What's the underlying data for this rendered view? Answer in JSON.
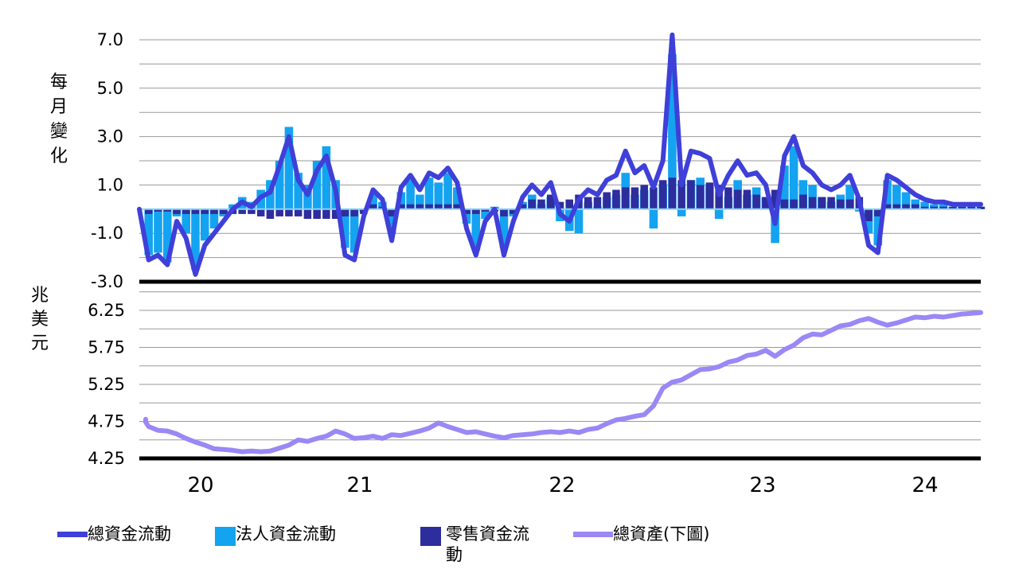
{
  "chart_data": [
    {
      "type": "line",
      "ylabel": "每月變化",
      "ylim": [
        -3.0,
        7.0
      ],
      "yticks": [
        "7.0",
        "5.0",
        "3.0",
        "1.0",
        "-1.0",
        "-3.0"
      ],
      "ytick_values": [
        7,
        5,
        3,
        1,
        -1,
        -3
      ],
      "x_range": [
        19.75,
        24.25
      ],
      "xticks": [
        "20",
        "21",
        "22",
        "23",
        "24"
      ],
      "xtick_values": [
        20,
        21,
        22,
        23,
        24
      ],
      "grid": true,
      "series": [
        {
          "name": "總資金流動",
          "color": "#3f3fd9",
          "kind": "line",
          "x": [
            19.75,
            19.8,
            19.85,
            19.9,
            19.95,
            20.0,
            20.05,
            20.1,
            20.15,
            20.2,
            20.25,
            20.3,
            20.35,
            20.4,
            20.45,
            20.5,
            20.55,
            20.6,
            20.65,
            20.7,
            20.75,
            20.8,
            20.85,
            20.9,
            20.95,
            21.0,
            21.05,
            21.1,
            21.15,
            21.2,
            21.25,
            21.3,
            21.35,
            21.4,
            21.45,
            21.5,
            21.55,
            21.6,
            21.65,
            21.7,
            21.75,
            21.8,
            21.85,
            21.9,
            21.95,
            22.0,
            22.05,
            22.1,
            22.15,
            22.2,
            22.25,
            22.3,
            22.35,
            22.4,
            22.45,
            22.5,
            22.55,
            22.6,
            22.65,
            22.7,
            22.75,
            22.8,
            22.85,
            22.9,
            22.95,
            23.0,
            23.05,
            23.1,
            23.15,
            23.2,
            23.25,
            23.3,
            23.35,
            23.4,
            23.45,
            23.5,
            23.55,
            23.6,
            23.65,
            23.7,
            23.75,
            23.8,
            23.85,
            23.9,
            23.95,
            24.0,
            24.05,
            24.1,
            24.15,
            24.2,
            24.25
          ],
          "values": [
            0,
            -2.1,
            -1.9,
            -2.3,
            -0.5,
            -1.2,
            -2.7,
            -1.5,
            -1.0,
            -0.5,
            0,
            0.3,
            0.1,
            0.5,
            0.7,
            1.8,
            3.0,
            1.2,
            0.6,
            1.6,
            2.2,
            0.8,
            -1.9,
            -2.1,
            -0.3,
            0.8,
            0.4,
            -1.3,
            0.9,
            1.4,
            0.8,
            1.5,
            1.3,
            1.7,
            1.1,
            -0.8,
            -1.9,
            -0.5,
            0,
            -1.9,
            -0.5,
            0.5,
            1.0,
            0.6,
            1.1,
            -0.2,
            -0.5,
            0.4,
            0.8,
            0.6,
            1.2,
            1.4,
            2.4,
            1.5,
            1.8,
            0.9,
            2.0,
            7.2,
            1.0,
            2.4,
            2.3,
            2.1,
            0.6,
            1.4,
            2.0,
            1.4,
            1.5,
            1.0,
            -0.6,
            2.2,
            3.0,
            1.8,
            1.5,
            1.0,
            0.8,
            1.0,
            1.4,
            0.4,
            -1.5,
            -1.8,
            1.4,
            1.2,
            0.9,
            0.6,
            0.4,
            0.3,
            0.3,
            0.2,
            0.2,
            0.2,
            0.2
          ]
        },
        {
          "name": "法人資金流動",
          "color": "#14a3f0",
          "kind": "bar",
          "x": [
            19.75,
            19.8,
            19.85,
            19.9,
            19.95,
            20.0,
            20.05,
            20.1,
            20.15,
            20.2,
            20.25,
            20.3,
            20.35,
            20.4,
            20.45,
            20.5,
            20.55,
            20.6,
            20.65,
            20.7,
            20.75,
            20.8,
            20.85,
            20.9,
            20.95,
            21.0,
            21.05,
            21.1,
            21.15,
            21.2,
            21.25,
            21.3,
            21.35,
            21.4,
            21.45,
            21.5,
            21.55,
            21.6,
            21.65,
            21.7,
            21.75,
            21.8,
            21.85,
            21.9,
            21.95,
            22.0,
            22.05,
            22.1,
            22.15,
            22.2,
            22.25,
            22.3,
            22.35,
            22.4,
            22.45,
            22.5,
            22.55,
            22.6,
            22.65,
            22.7,
            22.75,
            22.8,
            22.85,
            22.9,
            22.95,
            23.0,
            23.05,
            23.1,
            23.15,
            23.2,
            23.25,
            23.3,
            23.35,
            23.4,
            23.45,
            23.5,
            23.55,
            23.6,
            23.65,
            23.7,
            23.75,
            23.8,
            23.85,
            23.9,
            23.95,
            24.0,
            24.05,
            24.1,
            24.15,
            24.2,
            24.25
          ],
          "values": [
            0,
            -1.9,
            -1.8,
            -2.2,
            -0.3,
            -1.0,
            -2.5,
            -1.3,
            -0.8,
            -0.3,
            0.2,
            0.5,
            0.3,
            0.8,
            1.2,
            2.0,
            3.4,
            1.5,
            1.0,
            2.0,
            2.6,
            1.2,
            -1.6,
            -1.8,
            -0.1,
            0.6,
            0.3,
            -1.0,
            0.7,
            1.2,
            0.6,
            1.3,
            1.1,
            1.5,
            0.9,
            -0.6,
            -1.7,
            -0.4,
            0.1,
            -1.6,
            -0.3,
            0.3,
            0.6,
            0.2,
            0.5,
            -0.5,
            -0.9,
            -1.0,
            0.3,
            0.1,
            0.5,
            0.6,
            1.5,
            0.6,
            0.8,
            -0.8,
            1.0,
            6.4,
            -0.3,
            1.2,
            1.3,
            1.0,
            -0.4,
            0.5,
            1.2,
            0.6,
            0.9,
            0.5,
            -1.4,
            1.8,
            2.6,
            1.2,
            1.0,
            0.5,
            0.3,
            0.6,
            1.0,
            -0.1,
            -1.0,
            -1.5,
            1.2,
            1.0,
            0.7,
            0.4,
            0.3,
            0.2,
            0.2,
            0.1,
            0.1,
            0.1,
            0.1
          ]
        },
        {
          "name": "零售資金流動",
          "color": "#2e2d9e",
          "kind": "bar",
          "x": [
            19.75,
            19.8,
            19.85,
            19.9,
            19.95,
            20.0,
            20.05,
            20.1,
            20.15,
            20.2,
            20.25,
            20.3,
            20.35,
            20.4,
            20.45,
            20.5,
            20.55,
            20.6,
            20.65,
            20.7,
            20.75,
            20.8,
            20.85,
            20.9,
            20.95,
            21.0,
            21.05,
            21.1,
            21.15,
            21.2,
            21.25,
            21.3,
            21.35,
            21.4,
            21.45,
            21.5,
            21.55,
            21.6,
            21.65,
            21.7,
            21.75,
            21.8,
            21.85,
            21.9,
            21.95,
            22.0,
            22.05,
            22.1,
            22.15,
            22.2,
            22.25,
            22.3,
            22.35,
            22.4,
            22.45,
            22.5,
            22.55,
            22.6,
            22.65,
            22.7,
            22.75,
            22.8,
            22.85,
            22.9,
            22.95,
            23.0,
            23.05,
            23.1,
            23.15,
            23.2,
            23.25,
            23.3,
            23.35,
            23.4,
            23.45,
            23.5,
            23.55,
            23.6,
            23.65,
            23.7,
            23.75,
            23.8,
            23.85,
            23.9,
            23.95,
            24.0,
            24.05,
            24.1,
            24.15,
            24.2,
            24.25
          ],
          "values": [
            0,
            -0.2,
            -0.1,
            -0.1,
            -0.2,
            -0.2,
            -0.2,
            -0.2,
            -0.2,
            -0.2,
            -0.2,
            -0.2,
            -0.2,
            -0.3,
            -0.4,
            -0.3,
            -0.3,
            -0.3,
            -0.4,
            -0.4,
            -0.4,
            -0.4,
            -0.3,
            -0.3,
            -0.2,
            0.2,
            0.1,
            -0.3,
            0.2,
            0.2,
            0.2,
            0.2,
            0.2,
            0.2,
            0.2,
            -0.2,
            -0.2,
            -0.1,
            -0.1,
            -0.3,
            -0.2,
            0.2,
            0.4,
            0.4,
            0.6,
            0.3,
            0.4,
            0.6,
            0.5,
            0.5,
            0.7,
            0.8,
            0.9,
            0.9,
            1.0,
            0.9,
            1.2,
            1.3,
            1.2,
            1.2,
            1.0,
            1.1,
            1.0,
            0.9,
            0.8,
            0.8,
            0.6,
            0.5,
            0.8,
            0.4,
            0.4,
            0.6,
            0.5,
            0.5,
            0.5,
            0.4,
            0.4,
            0.5,
            -0.5,
            -0.3,
            0.2,
            0.2,
            0.2,
            0.2,
            0.1,
            0.1,
            0.1,
            0.1,
            0.1,
            0.1,
            0.1
          ]
        }
      ]
    },
    {
      "type": "line",
      "ylabel": "兆美元",
      "ylim": [
        4.25,
        6.6
      ],
      "yticks": [
        "6.25",
        "5.75",
        "5.25",
        "4.75",
        "4.25"
      ],
      "ytick_values": [
        6.25,
        5.75,
        5.25,
        4.75,
        4.25
      ],
      "x_range": [
        19.75,
        24.25
      ],
      "grid": true,
      "series": [
        {
          "name": "總資產(下圖)",
          "color": "#9b87f5",
          "x": [
            19.7,
            19.75,
            19.8,
            19.85,
            19.9,
            19.95,
            20.0,
            20.05,
            20.1,
            20.15,
            20.2,
            20.25,
            20.3,
            20.35,
            20.4,
            20.45,
            20.5,
            20.55,
            20.6,
            20.65,
            20.7,
            20.75,
            20.8,
            20.85,
            20.9,
            20.95,
            21.0,
            21.05,
            21.1,
            21.15,
            21.2,
            21.25,
            21.3,
            21.35,
            21.4,
            21.45,
            21.5,
            21.55,
            21.6,
            21.65,
            21.7,
            21.75,
            21.8,
            21.85,
            21.9,
            21.95,
            22.0,
            22.05,
            22.1,
            22.15,
            22.2,
            22.25,
            22.3,
            22.35,
            22.4,
            22.45,
            22.5,
            22.55,
            22.6,
            22.65,
            22.7,
            22.75,
            22.8,
            22.85,
            22.9,
            22.95,
            23.0,
            23.05,
            23.1,
            23.15,
            23.2,
            23.25,
            23.3,
            23.35,
            23.4,
            23.45,
            23.5,
            23.55,
            23.6,
            23.65,
            23.7,
            23.75,
            23.8,
            23.85,
            23.9,
            23.95,
            24.0,
            24.05,
            24.1,
            24.15,
            24.2,
            24.25
          ],
          "values": [
            4.78,
            4.74,
            4.68,
            4.63,
            4.62,
            4.58,
            4.52,
            4.47,
            4.43,
            4.38,
            4.37,
            4.36,
            4.34,
            4.35,
            4.34,
            4.35,
            4.39,
            4.43,
            4.5,
            4.48,
            4.52,
            4.55,
            4.62,
            4.58,
            4.52,
            4.53,
            4.55,
            4.52,
            4.57,
            4.56,
            4.59,
            4.62,
            4.66,
            4.73,
            4.68,
            4.64,
            4.6,
            4.61,
            4.58,
            4.55,
            4.53,
            4.56,
            4.57,
            4.58,
            4.6,
            4.61,
            4.6,
            4.62,
            4.6,
            4.64,
            4.66,
            4.72,
            4.77,
            4.79,
            4.82,
            4.84,
            4.96,
            5.2,
            5.28,
            5.31,
            5.38,
            5.45,
            5.46,
            5.49,
            5.55,
            5.58,
            5.64,
            5.66,
            5.71,
            5.63,
            5.72,
            5.78,
            5.88,
            5.93,
            5.92,
            5.98,
            6.04,
            6.06,
            6.11,
            6.14,
            6.09,
            6.05,
            6.08,
            6.12,
            6.16,
            6.15,
            6.17,
            6.16,
            6.18,
            6.2,
            6.21,
            6.22
          ]
        }
      ]
    }
  ],
  "legend": {
    "items": [
      {
        "label": "總資金流動",
        "color": "#3f3fd9"
      },
      {
        "label": "法人資金流動",
        "color": "#14a3f0"
      },
      {
        "label": "零售資金流動",
        "color": "#2e2d9e"
      },
      {
        "label": "總資產(下圖)",
        "color": "#9b87f5"
      }
    ]
  },
  "colors": {
    "grid": "#999999",
    "axis": "#000000",
    "zero_line": "#8fd3f5"
  }
}
